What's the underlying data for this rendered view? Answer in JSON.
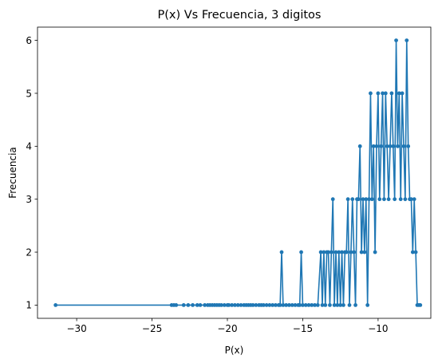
{
  "chart_data": {
    "type": "line",
    "title": "P(x) Vs Frecuencia, 3 digitos",
    "xlabel": "P(x)",
    "ylabel": "Frecuencia",
    "xlim": [
      -32.6,
      -6.5
    ],
    "ylim": [
      0.75,
      6.25
    ],
    "x_ticks": [
      -30,
      -25,
      -20,
      -15,
      -10
    ],
    "x_tick_labels": [
      "−30",
      "−25",
      "−20",
      "−15",
      "−10"
    ],
    "y_ticks": [
      1,
      2,
      3,
      4,
      5,
      6
    ],
    "y_tick_labels": [
      "1",
      "2",
      "3",
      "4",
      "5",
      "6"
    ],
    "grid": false,
    "color": "#1f77b4",
    "marker": "circle",
    "series": [
      {
        "x": [
          -31.4,
          -23.7,
          -23.55,
          -23.4,
          -22.9,
          -22.6,
          -22.3,
          -22.0,
          -21.8,
          -21.5,
          -21.3,
          -21.15,
          -21.0,
          -20.85,
          -20.7,
          -20.55,
          -20.4,
          -20.2,
          -20.0,
          -19.9,
          -19.7,
          -19.5,
          -19.3,
          -19.1,
          -18.9,
          -18.75,
          -18.6,
          -18.45,
          -18.3,
          -18.1,
          -17.9,
          -17.75,
          -17.6,
          -17.4,
          -17.2,
          -17.0,
          -16.8,
          -16.6,
          -16.5,
          -16.4,
          -16.3,
          -16.1,
          -15.9,
          -15.7,
          -15.5,
          -15.3,
          -15.2,
          -15.1,
          -15.0,
          -14.8,
          -14.6,
          -14.4,
          -14.2,
          -14.0,
          -13.8,
          -13.7,
          -13.6,
          -13.5,
          -13.4,
          -13.3,
          -13.2,
          -13.1,
          -13.0,
          -12.9,
          -12.8,
          -12.7,
          -12.6,
          -12.5,
          -12.4,
          -12.3,
          -12.2,
          -12.1,
          -12.0,
          -11.9,
          -11.8,
          -11.7,
          -11.6,
          -11.5,
          -11.4,
          -11.3,
          -11.2,
          -11.1,
          -11.0,
          -10.9,
          -10.8,
          -10.7,
          -10.6,
          -10.5,
          -10.4,
          -10.3,
          -10.2,
          -10.1,
          -10.0,
          -9.9,
          -9.8,
          -9.7,
          -9.6,
          -9.5,
          -9.4,
          -9.3,
          -9.2,
          -9.1,
          -9.0,
          -8.9,
          -8.8,
          -8.7,
          -8.6,
          -8.5,
          -8.4,
          -8.3,
          -8.2,
          -8.1,
          -8.0,
          -7.9,
          -7.8,
          -7.7,
          -7.6,
          -7.5,
          -7.4,
          -7.3,
          -7.2
        ],
        "y": [
          1,
          1,
          1,
          1,
          1,
          1,
          1,
          1,
          1,
          1,
          1,
          1,
          1,
          1,
          1,
          1,
          1,
          1,
          1,
          1,
          1,
          1,
          1,
          1,
          1,
          1,
          1,
          1,
          1,
          1,
          1,
          1,
          1,
          1,
          1,
          1,
          1,
          1,
          1,
          2,
          1,
          1,
          1,
          1,
          1,
          1,
          1,
          2,
          1,
          1,
          1,
          1,
          1,
          1,
          2,
          1,
          2,
          1,
          2,
          2,
          1,
          2,
          3,
          1,
          2,
          1,
          2,
          1,
          2,
          1,
          2,
          2,
          3,
          1,
          2,
          3,
          2,
          1,
          3,
          3,
          4,
          2,
          3,
          2,
          3,
          1,
          3,
          5,
          3,
          4,
          2,
          4,
          5,
          3,
          4,
          5,
          3,
          5,
          4,
          3,
          4,
          5,
          4,
          3,
          6,
          4,
          5,
          3,
          5,
          4,
          3,
          6,
          4,
          3,
          3,
          2,
          3,
          2,
          1,
          1,
          1
        ]
      }
    ]
  }
}
